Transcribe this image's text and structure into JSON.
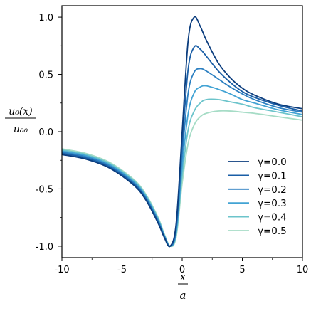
{
  "chart_data": {
    "type": "line",
    "xlabel_num": "x",
    "xlabel_den": "a",
    "ylabel_num": "u₀(x)",
    "ylabel_den": "u₀₀",
    "xlim": [
      -10,
      10
    ],
    "ylim": [
      -1.1,
      1.1
    ],
    "xticks": [
      -10,
      -5,
      0,
      5,
      10
    ],
    "xtick_labels": [
      "-10",
      "-5",
      "0",
      "5",
      "10"
    ],
    "yticks": [
      -1.0,
      -0.5,
      0.0,
      0.5,
      1.0
    ],
    "ytick_labels": [
      "-1.0",
      "-0.5",
      "0.0",
      "0.5",
      "1.0"
    ],
    "grid": false,
    "legend_position": "lower-right",
    "series": [
      {
        "name": "γ=0.0",
        "color": "#0b3d7e",
        "x": [
          -10,
          -8,
          -6,
          -4,
          -3,
          -2,
          -1.5,
          -1,
          -0.5,
          0,
          0.5,
          1,
          1.5,
          2,
          3,
          4,
          5,
          6,
          8,
          10
        ],
        "y": [
          -0.2,
          -0.24,
          -0.32,
          -0.47,
          -0.6,
          -0.8,
          -0.92,
          -1.0,
          -0.8,
          0.0,
          0.8,
          1.0,
          0.92,
          0.8,
          0.6,
          0.47,
          0.38,
          0.32,
          0.24,
          0.2
        ]
      },
      {
        "name": "γ=0.1",
        "color": "#1a5ea6",
        "x": [
          -10,
          -8,
          -6,
          -4,
          -3,
          -2,
          -1.5,
          -1,
          -0.5,
          0,
          0.5,
          1,
          1.5,
          2,
          3,
          4,
          5,
          6,
          8,
          10
        ],
        "y": [
          -0.19,
          -0.23,
          -0.31,
          -0.46,
          -0.59,
          -0.79,
          -0.92,
          -1.0,
          -0.83,
          -0.1,
          0.55,
          0.74,
          0.72,
          0.66,
          0.53,
          0.43,
          0.35,
          0.3,
          0.23,
          0.18
        ]
      },
      {
        "name": "γ=0.2",
        "color": "#2b7fc1",
        "x": [
          -10,
          -8,
          -6,
          -4,
          -3,
          -2,
          -1.5,
          -1,
          -0.5,
          0,
          0.5,
          1,
          1.5,
          2,
          3,
          4,
          5,
          6,
          8,
          10
        ],
        "y": [
          -0.18,
          -0.22,
          -0.3,
          -0.45,
          -0.58,
          -0.78,
          -0.91,
          -1.0,
          -0.86,
          -0.2,
          0.34,
          0.52,
          0.55,
          0.53,
          0.46,
          0.39,
          0.33,
          0.28,
          0.21,
          0.17
        ]
      },
      {
        "name": "γ=0.3",
        "color": "#42a3d4",
        "x": [
          -10,
          -8,
          -6,
          -4,
          -3,
          -2,
          -1.5,
          -1,
          -0.5,
          0,
          0.5,
          1,
          1.5,
          2,
          3,
          4,
          5,
          6,
          8,
          10
        ],
        "y": [
          -0.17,
          -0.21,
          -0.29,
          -0.44,
          -0.57,
          -0.77,
          -0.9,
          -1.0,
          -0.88,
          -0.3,
          0.16,
          0.34,
          0.39,
          0.4,
          0.37,
          0.33,
          0.28,
          0.25,
          0.19,
          0.15
        ]
      },
      {
        "name": "γ=0.4",
        "color": "#6cc4cb",
        "x": [
          -10,
          -8,
          -6,
          -4,
          -3,
          -2,
          -1.5,
          -1,
          -0.5,
          0,
          0.5,
          1,
          1.5,
          2,
          3,
          4,
          5,
          6,
          8,
          10
        ],
        "y": [
          -0.16,
          -0.2,
          -0.28,
          -0.43,
          -0.56,
          -0.76,
          -0.9,
          -1.0,
          -0.9,
          -0.38,
          0.02,
          0.18,
          0.25,
          0.28,
          0.28,
          0.26,
          0.24,
          0.21,
          0.17,
          0.13
        ]
      },
      {
        "name": "γ=0.5",
        "color": "#a6dcc6",
        "x": [
          -10,
          -8,
          -6,
          -4,
          -3,
          -2,
          -1.5,
          -1,
          -0.5,
          0,
          0.5,
          1,
          1.5,
          2,
          3,
          4,
          5,
          6,
          8,
          10
        ],
        "y": [
          -0.15,
          -0.19,
          -0.27,
          -0.42,
          -0.55,
          -0.75,
          -0.89,
          -1.0,
          -0.92,
          -0.45,
          -0.1,
          0.06,
          0.13,
          0.16,
          0.18,
          0.18,
          0.17,
          0.16,
          0.13,
          0.1
        ]
      }
    ]
  }
}
